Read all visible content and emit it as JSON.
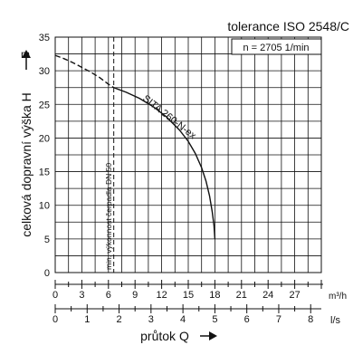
{
  "chart_data": {
    "type": "line",
    "title": "tolerance ISO 2548/C",
    "annotation_speed": "n = 2705 1/min",
    "ylabel": "celková dopravní výška H",
    "y_unit": "m",
    "xlabel": "průtok Q",
    "x1_unit": "m³/h",
    "x2_unit": "l/s",
    "ylim": [
      0,
      35
    ],
    "xlim": [
      0,
      30
    ],
    "y_ticks": [
      0,
      5,
      10,
      15,
      20,
      25,
      30,
      35
    ],
    "x1_ticks": [
      0,
      3,
      6,
      9,
      12,
      15,
      18,
      21,
      24,
      27
    ],
    "x2_ticks": [
      0,
      1,
      2,
      3,
      4,
      5,
      6,
      7,
      8
    ],
    "x2_per_x1": 3.6,
    "grid": true,
    "series": [
      {
        "name": "SITA 260-N-ex",
        "style": "solid",
        "x": [
          6.6,
          8,
          9.5,
          11,
          12.5,
          14,
          15,
          15.8,
          16.5,
          17,
          17.4,
          17.7,
          17.9,
          18.0
        ],
        "y": [
          27.5,
          26.8,
          25.9,
          24.7,
          23.2,
          21.2,
          19.5,
          17.7,
          15.6,
          13.6,
          11.4,
          9.0,
          7.0,
          5.0
        ]
      },
      {
        "name": "",
        "style": "dashed",
        "x": [
          0,
          1,
          2,
          3,
          4,
          5,
          6,
          6.6
        ],
        "y": [
          32.3,
          31.8,
          31.2,
          30.5,
          29.8,
          29.0,
          28.0,
          27.5
        ]
      }
    ],
    "min_flow_line": {
      "x": 6.6,
      "label": "min. výkonnost čerpadla DN 50"
    },
    "curve_label": "SITA 260-N-ex"
  }
}
